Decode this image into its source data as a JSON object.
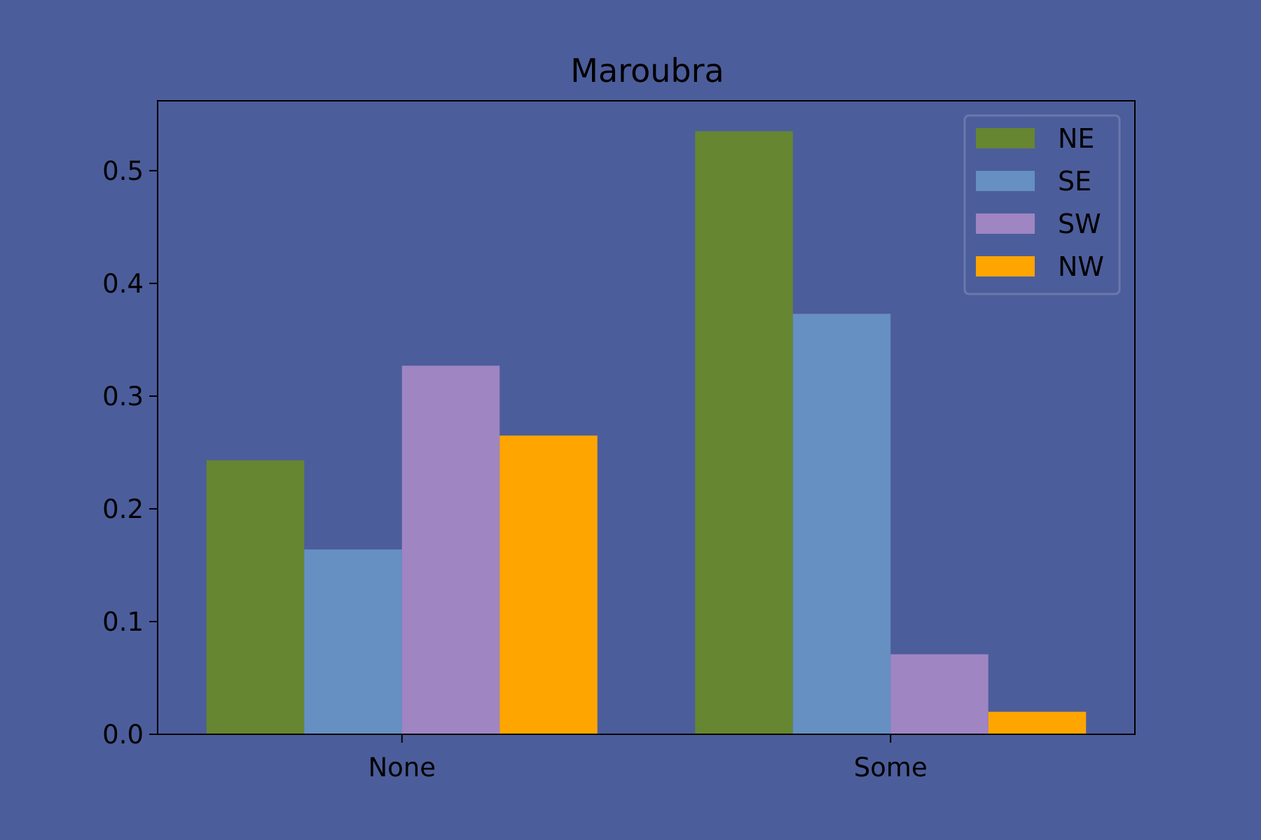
{
  "chart_data": {
    "type": "bar",
    "title": "Maroubra",
    "xlabel": "",
    "ylabel": "",
    "categories": [
      "None",
      "Some"
    ],
    "series": [
      {
        "name": "NE",
        "color": "#668631",
        "values": [
          0.243,
          0.535
        ]
      },
      {
        "name": "SE",
        "color": "#668fc2",
        "values": [
          0.164,
          0.373
        ]
      },
      {
        "name": "SW",
        "color": "#9f85c2",
        "values": [
          0.327,
          0.071
        ]
      },
      {
        "name": "NW",
        "color": "#ffa500",
        "values": [
          0.265,
          0.02
        ]
      }
    ],
    "ylim": [
      0,
      0.562
    ],
    "yticks": [
      "0.0",
      "0.1",
      "0.2",
      "0.3",
      "0.4",
      "0.5"
    ],
    "ytick_values": [
      0,
      0.1,
      0.2,
      0.3,
      0.4,
      0.5
    ],
    "grid": false,
    "legend_position": "top-right",
    "colors": {
      "background": "#4c5d9b",
      "axes": "#000000"
    }
  }
}
